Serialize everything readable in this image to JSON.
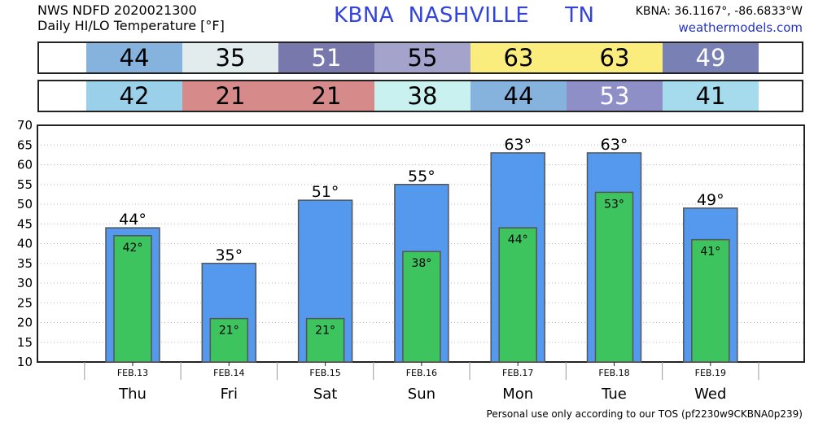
{
  "header": {
    "line1": "NWS NDFD 2020021300",
    "line2": "Daily HI/LO Temperature [°F]",
    "station": "KBNA  NASHVILLE     TN",
    "coords": "KBNA: 36.1167°, -86.6833°W",
    "site": "weathermodels.com"
  },
  "footer": "Personal use only according to our TOS (pf2230w9CKBNA0p239)",
  "strips": {
    "hi": {
      "values": [
        "44",
        "35",
        "51",
        "55",
        "63",
        "63",
        "49"
      ],
      "colors": [
        "#86b3de",
        "#e3eced",
        "#7878ac",
        "#a3a3cb",
        "#fbed7d",
        "#fbed7d",
        "#7981b4"
      ],
      "text_colors": [
        "#000000",
        "#000000",
        "#ffffff",
        "#000000",
        "#000000",
        "#000000",
        "#ffffff"
      ]
    },
    "lo": {
      "values": [
        "42",
        "21",
        "21",
        "38",
        "44",
        "53",
        "41"
      ],
      "colors": [
        "#9bd0ea",
        "#d68a8a",
        "#d68a8a",
        "#c8f1f0",
        "#86b3de",
        "#8f8fc7",
        "#a6dbee"
      ],
      "text_colors": [
        "#000000",
        "#000000",
        "#000000",
        "#000000",
        "#000000",
        "#ffffff",
        "#000000"
      ]
    }
  },
  "chart_data": {
    "type": "bar",
    "categories": [
      "Thu",
      "Fri",
      "Sat",
      "Sun",
      "Mon",
      "Tue",
      "Wed"
    ],
    "dates": [
      "FEB.13",
      "FEB.14",
      "FEB.15",
      "FEB.16",
      "FEB.17",
      "FEB.18",
      "FEB.19"
    ],
    "series": [
      {
        "values": [
          44,
          35,
          51,
          55,
          63,
          63,
          49
        ],
        "color": "#5599ee"
      },
      {
        "values": [
          42,
          21,
          21,
          38,
          44,
          53,
          41
        ],
        "color": "#3dc45e"
      }
    ],
    "hi_labels": [
      "44°",
      "35°",
      "51°",
      "55°",
      "63°",
      "63°",
      "49°"
    ],
    "lo_labels": [
      "42°",
      "21°",
      "21°",
      "38°",
      "44°",
      "53°",
      "41°"
    ],
    "ylim": [
      10,
      70
    ],
    "yticks": [
      "10",
      "15",
      "20",
      "25",
      "30",
      "35",
      "40",
      "45",
      "50",
      "55",
      "60",
      "65",
      "70"
    ],
    "grid": true,
    "legend": "none"
  }
}
